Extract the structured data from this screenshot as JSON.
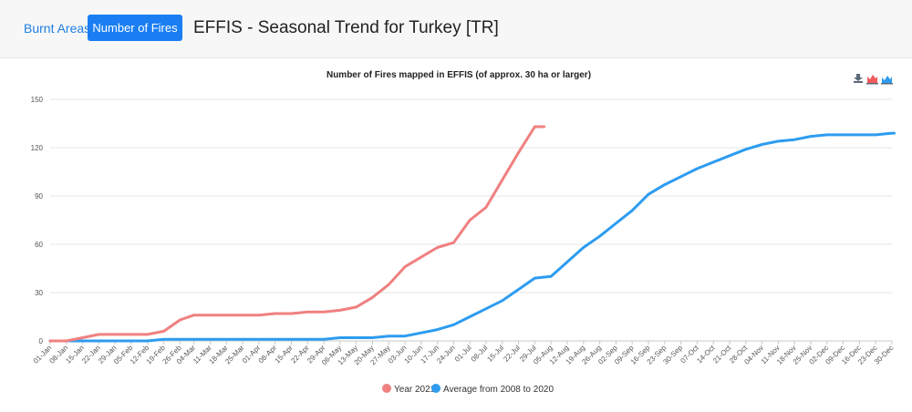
{
  "header": {
    "tab_burnt": "Burnt Areas",
    "tab_fires": "Number of Fires",
    "title": "EFFIS - Seasonal Trend for Turkey [TR]"
  },
  "chart_data": {
    "type": "line",
    "title": "Number of Fires mapped in EFFIS (of approx. 30 ha or larger)",
    "xlabel": "",
    "ylabel": "",
    "ylim": [
      0,
      150
    ],
    "yticks": [
      0,
      30,
      60,
      90,
      120,
      150
    ],
    "xlim": [
      "01-Jan",
      "30-Dec"
    ],
    "x_tick_labels": [
      "01-Jan",
      "08-Jan",
      "15-Jan",
      "22-Jan",
      "29-Jan",
      "05-Feb",
      "12-Feb",
      "19-Feb",
      "26-Feb",
      "04-Mar",
      "11-Mar",
      "18-Mar",
      "25-Mar",
      "01-Apr",
      "08-Apr",
      "15-Apr",
      "22-Apr",
      "29-Apr",
      "06-May",
      "13-May",
      "20-May",
      "27-May",
      "03-Jun",
      "10-Jun",
      "17-Jun",
      "24-Jun",
      "01-Jul",
      "08-Jul",
      "15-Jul",
      "22-Jul",
      "29-Jul",
      "05-Aug",
      "12-Aug",
      "19-Aug",
      "26-Aug",
      "02-Sep",
      "09-Sep",
      "16-Sep",
      "23-Sep",
      "30-Sep",
      "07-Oct",
      "14-Oct",
      "21-Oct",
      "28-Oct",
      "04-Nov",
      "11-Nov",
      "18-Nov",
      "25-Nov",
      "02-Dec",
      "09-Dec",
      "16-Dec",
      "23-Dec",
      "30-Dec"
    ],
    "grid": "horizontal",
    "legend_position": "bottom-center",
    "series": [
      {
        "name": "Year 2021",
        "color": "#f08080",
        "points": [
          [
            "01-Jan",
            0
          ],
          [
            "08-Jan",
            0
          ],
          [
            "15-Jan",
            2
          ],
          [
            "22-Jan",
            4
          ],
          [
            "29-Jan",
            4
          ],
          [
            "05-Feb",
            4
          ],
          [
            "12-Feb",
            4
          ],
          [
            "19-Feb",
            6
          ],
          [
            "26-Feb",
            13
          ],
          [
            "04-Mar",
            16
          ],
          [
            "11-Mar",
            16
          ],
          [
            "18-Mar",
            16
          ],
          [
            "25-Mar",
            16
          ],
          [
            "01-Apr",
            16
          ],
          [
            "08-Apr",
            17
          ],
          [
            "15-Apr",
            17
          ],
          [
            "22-Apr",
            18
          ],
          [
            "29-Apr",
            18
          ],
          [
            "06-May",
            19
          ],
          [
            "13-May",
            21
          ],
          [
            "20-May",
            27
          ],
          [
            "27-May",
            35
          ],
          [
            "03-Jun",
            46
          ],
          [
            "10-Jun",
            52
          ],
          [
            "17-Jun",
            58
          ],
          [
            "24-Jun",
            61
          ],
          [
            "01-Jul",
            75
          ],
          [
            "08-Jul",
            83
          ],
          [
            "15-Jul",
            100
          ],
          [
            "22-Jul",
            117
          ],
          [
            "29-Jul",
            133
          ],
          [
            "02-Aug",
            133
          ]
        ]
      },
      {
        "name": "Average from 2008 to 2020",
        "color": "#2d9cf0",
        "points": [
          [
            "01-Jan",
            0
          ],
          [
            "15-Jan",
            0
          ],
          [
            "29-Jan",
            0
          ],
          [
            "12-Feb",
            0
          ],
          [
            "19-Feb",
            1
          ],
          [
            "04-Mar",
            1
          ],
          [
            "18-Mar",
            1
          ],
          [
            "01-Apr",
            1
          ],
          [
            "15-Apr",
            1
          ],
          [
            "29-Apr",
            1
          ],
          [
            "06-May",
            2
          ],
          [
            "20-May",
            2
          ],
          [
            "27-May",
            3
          ],
          [
            "03-Jun",
            3
          ],
          [
            "10-Jun",
            5
          ],
          [
            "17-Jun",
            7
          ],
          [
            "24-Jun",
            10
          ],
          [
            "01-Jul",
            15
          ],
          [
            "08-Jul",
            20
          ],
          [
            "15-Jul",
            25
          ],
          [
            "22-Jul",
            32
          ],
          [
            "29-Jul",
            39
          ],
          [
            "05-Aug",
            40
          ],
          [
            "12-Aug",
            49
          ],
          [
            "19-Aug",
            58
          ],
          [
            "26-Aug",
            65
          ],
          [
            "02-Sep",
            73
          ],
          [
            "09-Sep",
            81
          ],
          [
            "16-Sep",
            91
          ],
          [
            "23-Sep",
            97
          ],
          [
            "30-Sep",
            102
          ],
          [
            "07-Oct",
            107
          ],
          [
            "14-Oct",
            111
          ],
          [
            "21-Oct",
            115
          ],
          [
            "28-Oct",
            119
          ],
          [
            "04-Nov",
            122
          ],
          [
            "11-Nov",
            124
          ],
          [
            "18-Nov",
            125
          ],
          [
            "25-Nov",
            127
          ],
          [
            "02-Dec",
            128
          ],
          [
            "09-Dec",
            128
          ],
          [
            "16-Dec",
            128
          ],
          [
            "23-Dec",
            128
          ],
          [
            "30-Dec",
            129
          ],
          [
            "31-Dec",
            129
          ]
        ]
      }
    ]
  },
  "toolbar": {
    "icons": [
      "download-icon",
      "area-chart-red-icon",
      "area-chart-blue-icon"
    ],
    "colors": {
      "download": "#5a6a7a",
      "red": "#f05a5a",
      "blue": "#2d9cf0"
    }
  }
}
